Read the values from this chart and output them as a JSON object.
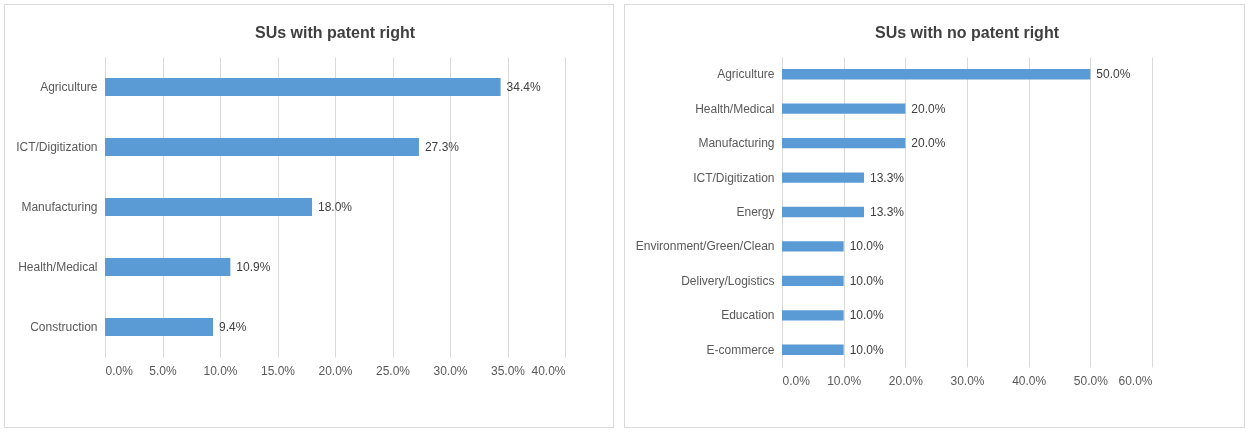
{
  "chart_data": [
    {
      "type": "bar",
      "orientation": "horizontal",
      "title": "SUs with patent right",
      "categories": [
        "Agriculture",
        "ICT/Digitization",
        "Manufacturing",
        "Health/Medical",
        "Construction"
      ],
      "values": [
        34.4,
        27.3,
        18.0,
        10.9,
        9.4
      ],
      "color": "#5b9bd5",
      "value_labels": [
        "34.4%",
        "27.3%",
        "18.0%",
        "10.9%",
        "9.4%"
      ],
      "xlim": [
        0,
        40
      ],
      "xticks": [
        {
          "value": 0,
          "label": "0.0%"
        },
        {
          "value": 5,
          "label": "5.0%"
        },
        {
          "value": 10,
          "label": "10.0%"
        },
        {
          "value": 15,
          "label": "15.0%"
        },
        {
          "value": 20,
          "label": "20.0%"
        },
        {
          "value": 25,
          "label": "25.0%"
        },
        {
          "value": 30,
          "label": "30.0%"
        },
        {
          "value": 35,
          "label": "35.0%"
        },
        {
          "value": 40,
          "label": "40.0%"
        }
      ],
      "grid": "x"
    },
    {
      "type": "bar",
      "orientation": "horizontal",
      "title": "SUs with no patent right",
      "categories": [
        "Agriculture",
        "Health/Medical",
        "Manufacturing",
        "ICT/Digitization",
        "Energy",
        "Environment/Green/Clean",
        "Delivery/Logistics",
        "Education",
        "E-commerce"
      ],
      "values": [
        50.0,
        20.0,
        20.0,
        13.3,
        13.3,
        10.0,
        10.0,
        10.0,
        10.0
      ],
      "color": "#5b9bd5",
      "value_labels": [
        "50.0%",
        "20.0%",
        "20.0%",
        "13.3%",
        "13.3%",
        "10.0%",
        "10.0%",
        "10.0%",
        "10.0%"
      ],
      "xlim": [
        0,
        60
      ],
      "xticks": [
        {
          "value": 0,
          "label": "0.0%"
        },
        {
          "value": 10,
          "label": "10.0%"
        },
        {
          "value": 20,
          "label": "20.0%"
        },
        {
          "value": 30,
          "label": "30.0%"
        },
        {
          "value": 40,
          "label": "40.0%"
        },
        {
          "value": 50,
          "label": "50.0%"
        },
        {
          "value": 60,
          "label": "60.0%"
        }
      ],
      "grid": "x"
    }
  ]
}
